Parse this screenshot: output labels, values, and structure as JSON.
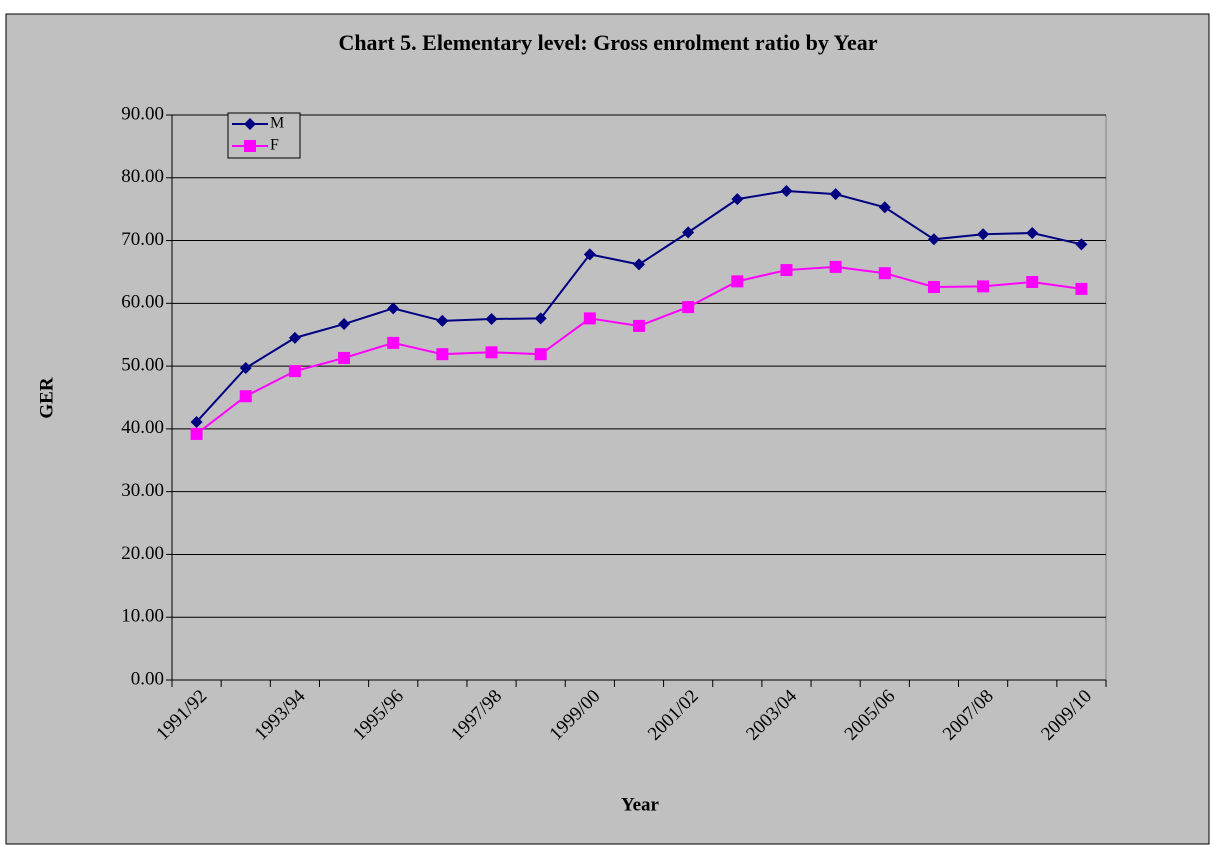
{
  "chart_data": {
    "type": "line",
    "title": "Chart 5.  Elementary level: Gross enrolment ratio by  Year",
    "x_label": "Year",
    "y_label": "GER",
    "categories": [
      "1991/92",
      null,
      "1993/94",
      null,
      "1995/96",
      null,
      "1997/98",
      null,
      "1999/00",
      null,
      "2001/02",
      null,
      "2003/04",
      null,
      "2005/06",
      null,
      "2007/08",
      null,
      "2009/10"
    ],
    "series": [
      {
        "name": "M",
        "color": "#000080",
        "marker": "diamond",
        "values": [
          41.1,
          49.7,
          54.5,
          56.7,
          59.2,
          57.2,
          57.5,
          57.6,
          67.8,
          66.2,
          71.3,
          76.6,
          77.9,
          77.4,
          75.3,
          70.2,
          71.0,
          71.2,
          69.4
        ]
      },
      {
        "name": "F",
        "color": "#ff00ff",
        "marker": "square",
        "values": [
          39.2,
          45.2,
          49.2,
          51.3,
          53.7,
          51.9,
          52.2,
          51.9,
          57.6,
          56.4,
          59.4,
          63.5,
          65.3,
          65.8,
          64.8,
          62.6,
          62.7,
          63.4,
          62.3
        ]
      }
    ],
    "ylim": [
      0,
      90
    ],
    "yticks": [
      {
        "value": 0,
        "label": "0.00"
      },
      {
        "value": 10,
        "label": "10.00"
      },
      {
        "value": 20,
        "label": "20.00"
      },
      {
        "value": 30,
        "label": "30.00"
      },
      {
        "value": 40,
        "label": "40.00"
      },
      {
        "value": 50,
        "label": "50.00"
      },
      {
        "value": 60,
        "label": "60.00"
      },
      {
        "value": 70,
        "label": "70.00"
      },
      {
        "value": 80,
        "label": "80.00"
      },
      {
        "value": 90,
        "label": "90.00"
      }
    ],
    "grid": true,
    "legend": "top-left",
    "background": "#c0c0c0"
  }
}
